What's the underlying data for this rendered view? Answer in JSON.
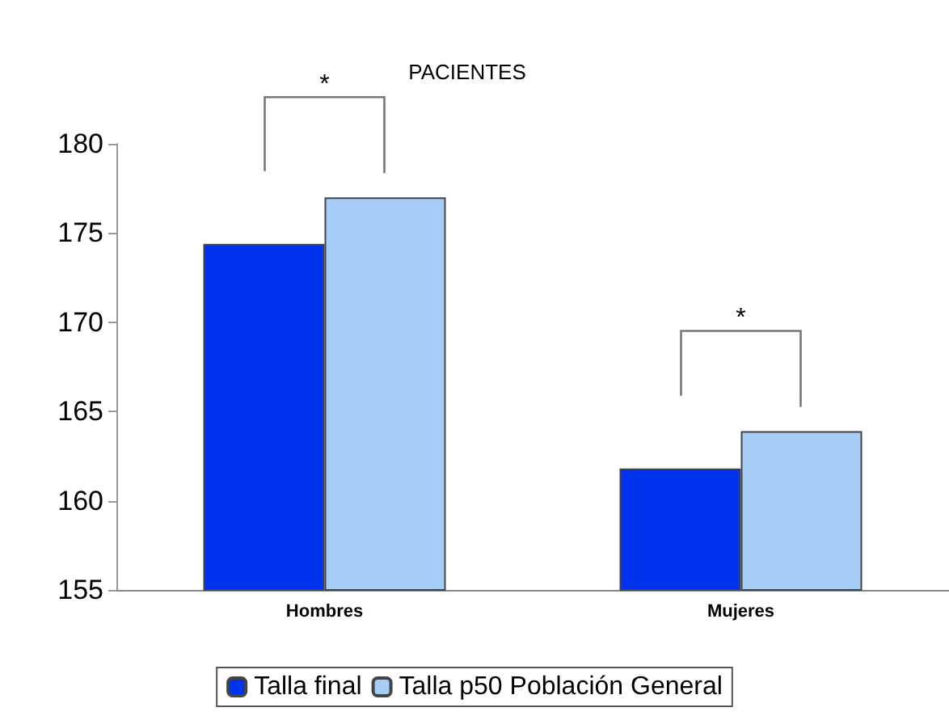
{
  "chart_data": {
    "type": "bar",
    "title": "PACIENTES",
    "categories": [
      "Hombres",
      "Mujeres"
    ],
    "series": [
      {
        "name": "Talla final",
        "color": "#0033ee",
        "values": [
          174.4,
          161.8
        ]
      },
      {
        "name": "Talla p50 Población General",
        "color": "#a6cdf5",
        "values": [
          177.0,
          163.9
        ]
      }
    ],
    "ylim": [
      155,
      180
    ],
    "yticks": [
      155,
      160,
      165,
      170,
      175,
      180
    ],
    "grid": false,
    "legend": "bottom",
    "annotations": [
      "*",
      "*"
    ]
  }
}
